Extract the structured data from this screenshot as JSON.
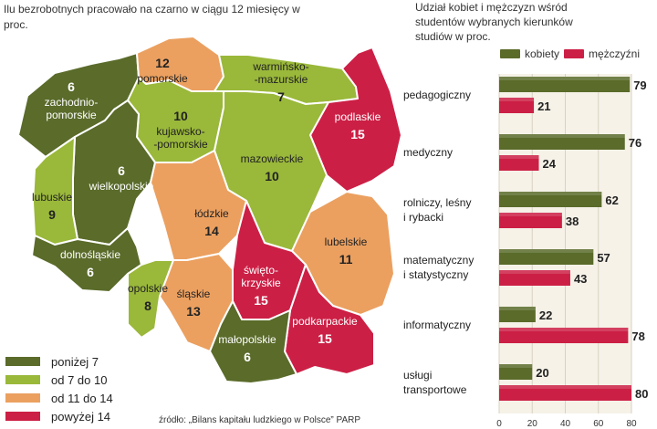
{
  "map": {
    "title": "Ilu bezrobotnych pracowało na czarno w ciągu 12 miesięcy w proc.",
    "colors": {
      "below7": "#5a6b2a",
      "7to10": "#9ab83a",
      "11to14": "#eba060",
      "above14": "#cc1f45"
    },
    "legend": [
      {
        "label": "poniżej 7",
        "color": "#5a6b2a"
      },
      {
        "label": "od 7 do 10",
        "color": "#9ab83a"
      },
      {
        "label": "od 11 do 14",
        "color": "#eba060"
      },
      {
        "label": "powyżej 14",
        "color": "#cc1f45"
      }
    ],
    "regions": [
      {
        "name": "zachodnio-pomorskie",
        "value": 6
      },
      {
        "name": "pomorskie",
        "value": 12
      },
      {
        "name": "warmińsko-mazurskie",
        "value": 7
      },
      {
        "name": "podlaskie",
        "value": 15
      },
      {
        "name": "kujawsko-pomorskie",
        "value": 10
      },
      {
        "name": "wielkopolskie",
        "value": 6
      },
      {
        "name": "lubuskie",
        "value": 9
      },
      {
        "name": "mazowieckie",
        "value": 10
      },
      {
        "name": "łódzkie",
        "value": 14
      },
      {
        "name": "lubelskie",
        "value": 11
      },
      {
        "name": "dolnośląskie",
        "value": 6
      },
      {
        "name": "opolskie",
        "value": 8
      },
      {
        "name": "śląskie",
        "value": 13
      },
      {
        "name": "świętokrzyskie",
        "value": 15
      },
      {
        "name": "podkarpackie",
        "value": 15
      },
      {
        "name": "małopolskie",
        "value": 6
      }
    ],
    "source": "źródło: „Bilans kapitału ludzkiego w Polsce” PARP"
  },
  "chart_data": {
    "type": "bar",
    "title": "Udział kobiet i mężczyzn wśród studentów wybranych kierunków studiów w proc.",
    "categories": [
      "pedagogiczny",
      "medyczny",
      "rolniczy, leśny i rybacki",
      "matematyczny i statystyczny",
      "informatyczny",
      "usługi transportowe"
    ],
    "series": [
      {
        "name": "kobiety",
        "color": "#5a6b2a",
        "values": [
          79,
          76,
          62,
          57,
          22,
          20
        ]
      },
      {
        "name": "mężczyźni",
        "color": "#cc1f45",
        "values": [
          21,
          24,
          38,
          43,
          78,
          80
        ]
      }
    ],
    "xlim": [
      0,
      80
    ],
    "xticks": [
      0,
      20,
      40,
      60,
      80
    ],
    "legend_position": "top",
    "grid": true
  }
}
